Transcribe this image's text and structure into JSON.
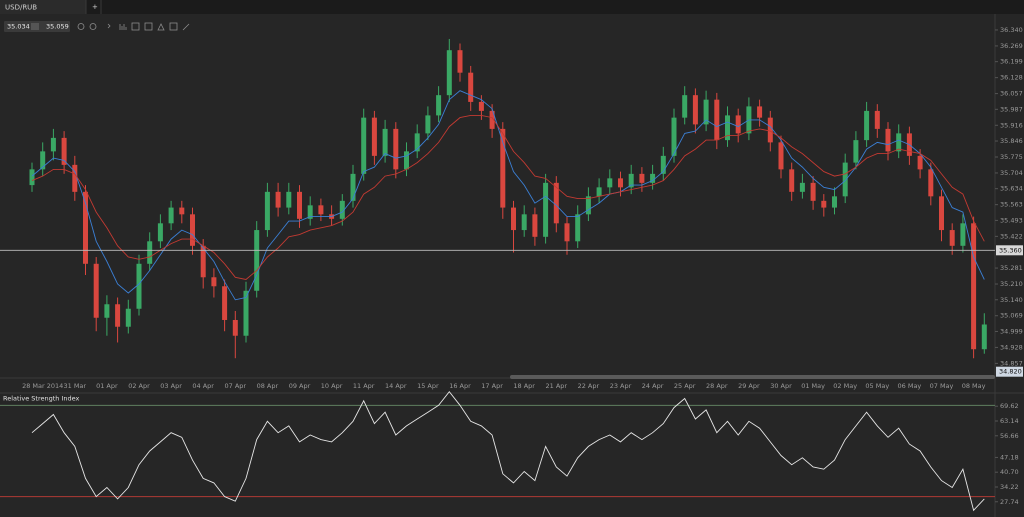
{
  "header": {
    "tab": "USD/RUB",
    "tab_add": "+",
    "bid": 35.034,
    "ask": 35.059
  },
  "chart_data": [
    {
      "type": "candlestick",
      "categories": [
        "28 Mar 2014",
        null,
        null,
        "31 Mar",
        null,
        null,
        "01 Apr",
        null,
        null,
        "02 Apr",
        null,
        null,
        "03 Apr",
        null,
        null,
        "04 Apr",
        null,
        null,
        "07 Apr",
        null,
        null,
        "08 Apr",
        null,
        null,
        "09 Apr",
        null,
        null,
        "10 Apr",
        null,
        null,
        "11 Apr",
        null,
        null,
        "14 Apr",
        null,
        null,
        "15 Apr",
        null,
        null,
        "16 Apr",
        null,
        null,
        "17 Apr",
        null,
        null,
        "18 Apr",
        null,
        null,
        "21 Apr",
        null,
        null,
        "22 Apr",
        null,
        null,
        "23 Apr",
        null,
        null,
        "24 Apr",
        null,
        null,
        "25 Apr",
        null,
        null,
        "28 Apr",
        null,
        null,
        "29 Apr",
        null,
        null,
        "30 Apr",
        null,
        null,
        "01 May",
        null,
        null,
        "02 May",
        null,
        null,
        "05 May",
        null,
        null,
        "06 May",
        null,
        null,
        "07 May",
        null,
        null,
        "08 May",
        null,
        null
      ],
      "open": [
        35.65,
        35.72,
        35.8,
        35.86,
        35.74,
        35.62,
        35.3,
        35.06,
        35.12,
        35.02,
        35.1,
        35.3,
        35.4,
        35.48,
        35.55,
        35.52,
        35.38,
        35.24,
        35.2,
        35.05,
        34.98,
        35.18,
        35.45,
        35.62,
        35.55,
        35.62,
        35.5,
        35.56,
        35.52,
        35.5,
        35.58,
        35.7,
        35.95,
        35.78,
        35.9,
        35.72,
        35.8,
        35.88,
        35.96,
        36.05,
        36.25,
        36.15,
        36.02,
        35.98,
        35.9,
        35.55,
        35.45,
        35.52,
        35.42,
        35.66,
        35.48,
        35.4,
        35.52,
        35.6,
        35.64,
        35.68,
        35.64,
        35.7,
        35.66,
        35.7,
        35.78,
        35.95,
        36.05,
        35.92,
        36.03,
        35.85,
        35.96,
        35.88,
        36.0,
        35.95,
        35.84,
        35.72,
        35.62,
        35.66,
        35.58,
        35.55,
        35.6,
        35.75,
        35.85,
        35.98,
        35.9,
        35.8,
        35.88,
        35.78,
        35.72,
        35.6,
        35.45,
        35.38,
        35.48,
        34.92
      ],
      "high": [
        35.75,
        35.84,
        35.9,
        35.89,
        35.78,
        35.65,
        35.33,
        35.16,
        35.15,
        35.14,
        35.34,
        35.44,
        35.52,
        35.58,
        35.58,
        35.55,
        35.41,
        35.28,
        35.23,
        35.09,
        35.22,
        35.49,
        35.66,
        35.66,
        35.66,
        35.65,
        35.6,
        35.59,
        35.56,
        35.61,
        35.74,
        35.99,
        35.98,
        35.94,
        35.93,
        35.84,
        35.92,
        36.0,
        36.09,
        36.3,
        36.28,
        36.18,
        36.05,
        36.01,
        35.93,
        35.58,
        35.56,
        35.55,
        35.7,
        35.69,
        35.51,
        35.56,
        35.64,
        35.68,
        35.72,
        35.71,
        35.74,
        35.73,
        35.74,
        35.82,
        35.99,
        36.09,
        36.08,
        36.07,
        36.06,
        36.0,
        35.99,
        36.04,
        36.03,
        35.98,
        35.87,
        35.75,
        35.7,
        35.69,
        35.61,
        35.64,
        35.79,
        35.89,
        36.02,
        36.01,
        35.93,
        35.92,
        35.91,
        35.81,
        35.75,
        35.63,
        35.48,
        35.52,
        35.51,
        35.08
      ],
      "low": [
        35.62,
        35.69,
        35.76,
        35.7,
        35.58,
        35.25,
        35.0,
        34.98,
        34.95,
        34.99,
        35.07,
        35.27,
        35.37,
        35.45,
        35.48,
        35.34,
        35.19,
        35.15,
        35.0,
        34.88,
        34.95,
        35.15,
        35.42,
        35.51,
        35.52,
        35.46,
        35.47,
        35.49,
        35.47,
        35.47,
        35.55,
        35.67,
        35.74,
        35.75,
        35.68,
        35.69,
        35.77,
        35.85,
        35.93,
        36.02,
        36.11,
        35.98,
        35.94,
        35.86,
        35.5,
        35.35,
        35.42,
        35.38,
        35.39,
        35.44,
        35.34,
        35.37,
        35.49,
        35.57,
        35.61,
        35.6,
        35.61,
        35.62,
        35.63,
        35.67,
        35.75,
        35.92,
        35.88,
        35.89,
        35.81,
        35.82,
        35.84,
        35.85,
        35.91,
        35.8,
        35.68,
        35.58,
        35.59,
        35.54,
        35.51,
        35.52,
        35.57,
        35.72,
        35.82,
        35.86,
        35.76,
        35.77,
        35.74,
        35.68,
        35.56,
        35.4,
        35.34,
        35.35,
        34.88,
        34.9
      ],
      "close": [
        35.72,
        35.8,
        35.86,
        35.74,
        35.62,
        35.3,
        35.06,
        35.12,
        35.02,
        35.1,
        35.3,
        35.4,
        35.48,
        35.55,
        35.52,
        35.38,
        35.24,
        35.2,
        35.05,
        34.98,
        35.18,
        35.45,
        35.62,
        35.55,
        35.62,
        35.5,
        35.56,
        35.52,
        35.5,
        35.58,
        35.7,
        35.95,
        35.78,
        35.9,
        35.72,
        35.8,
        35.88,
        35.96,
        36.05,
        36.25,
        36.15,
        36.02,
        35.98,
        35.9,
        35.55,
        35.45,
        35.52,
        35.42,
        35.66,
        35.48,
        35.4,
        35.52,
        35.6,
        35.64,
        35.68,
        35.64,
        35.7,
        35.66,
        35.7,
        35.78,
        35.95,
        36.05,
        35.92,
        36.03,
        35.85,
        35.96,
        35.88,
        36.0,
        35.95,
        35.84,
        35.72,
        35.62,
        35.66,
        35.58,
        35.55,
        35.6,
        35.75,
        35.85,
        35.98,
        35.9,
        35.8,
        35.88,
        35.78,
        35.72,
        35.6,
        35.45,
        35.38,
        35.48,
        34.92,
        35.03
      ],
      "up_color": "#3aa865",
      "down_color": "#d9473f",
      "series": [
        {
          "color": "#3b7fd4",
          "values": [
            35.69,
            35.73,
            35.77,
            35.76,
            35.71,
            35.57,
            35.4,
            35.31,
            35.21,
            35.17,
            35.21,
            35.27,
            35.34,
            35.41,
            35.45,
            35.43,
            35.37,
            35.31,
            35.22,
            35.14,
            35.15,
            35.25,
            35.37,
            35.43,
            35.49,
            35.49,
            35.51,
            35.51,
            35.51,
            35.53,
            35.59,
            35.71,
            35.73,
            35.79,
            35.77,
            35.78,
            35.81,
            35.86,
            35.92,
            36.03,
            36.07,
            36.05,
            36.03,
            35.99,
            35.84,
            35.71,
            35.65,
            35.57,
            35.6,
            35.56,
            35.51,
            35.51,
            35.54,
            35.57,
            35.61,
            35.62,
            35.65,
            35.65,
            35.67,
            35.71,
            35.79,
            35.88,
            35.89,
            35.94,
            35.91,
            35.93,
            35.91,
            35.94,
            35.94,
            35.91,
            35.85,
            35.77,
            35.73,
            35.68,
            35.64,
            35.63,
            35.67,
            35.73,
            35.81,
            35.84,
            35.83,
            35.85,
            35.83,
            35.79,
            35.73,
            35.64,
            35.55,
            35.53,
            35.33,
            35.23
          ]
        },
        {
          "color": "#c23a32",
          "values": [
            35.67,
            35.69,
            35.72,
            35.72,
            35.7,
            35.63,
            35.53,
            35.46,
            35.38,
            35.33,
            35.32,
            35.33,
            35.36,
            35.39,
            35.41,
            35.41,
            35.38,
            35.35,
            35.3,
            35.24,
            35.23,
            35.27,
            35.33,
            35.37,
            35.42,
            35.43,
            35.45,
            35.46,
            35.47,
            35.49,
            35.53,
            35.61,
            35.64,
            35.69,
            35.7,
            35.72,
            35.75,
            35.79,
            35.84,
            35.91,
            35.95,
            35.96,
            35.96,
            35.95,
            35.88,
            35.8,
            35.75,
            35.69,
            35.68,
            35.64,
            35.6,
            35.59,
            35.59,
            35.6,
            35.61,
            35.62,
            35.63,
            35.64,
            35.65,
            35.67,
            35.72,
            35.78,
            35.81,
            35.85,
            35.85,
            35.87,
            35.87,
            35.89,
            35.9,
            35.89,
            35.86,
            35.82,
            35.79,
            35.75,
            35.71,
            35.69,
            35.7,
            35.73,
            35.77,
            35.79,
            35.79,
            35.81,
            35.8,
            35.79,
            35.76,
            35.7,
            35.64,
            35.61,
            35.49,
            35.4
          ]
        }
      ],
      "ylim": [
        34.792,
        36.411
      ],
      "yticks": [
        {
          "value": 36.34,
          "label": "36.340"
        },
        36.269,
        36.199,
        36.128,
        36.057,
        35.987,
        35.916,
        35.846,
        35.775,
        35.704,
        35.634,
        35.563,
        35.493,
        35.422,
        35.281,
        {
          "value": 35.21,
          "label": "35.210"
        },
        {
          "value": 35.14,
          "label": "35.140"
        },
        35.069,
        34.999,
        34.928,
        34.857
      ],
      "price_line": {
        "value": 35.36,
        "label": "35.360"
      },
      "low_marker": {
        "value": 34.82,
        "label": "34.820"
      }
    },
    {
      "type": "line",
      "title": "Relative Strength Index",
      "color": "#e6e6e6",
      "values": [
        58,
        62,
        66,
        58,
        52,
        38,
        30,
        34,
        29,
        34,
        44,
        50,
        54,
        58,
        56,
        46,
        38,
        36,
        30,
        28,
        38,
        55,
        63,
        58,
        61,
        54,
        57,
        55,
        54,
        58,
        63,
        72,
        62,
        67,
        57,
        61,
        64,
        67,
        70,
        76,
        70,
        63,
        61,
        57,
        40,
        36,
        41,
        37,
        52,
        43,
        39,
        47,
        52,
        55,
        57,
        54,
        58,
        55,
        58,
        62,
        69,
        73,
        64,
        68,
        58,
        63,
        57,
        63,
        60,
        54,
        48,
        44,
        47,
        43,
        42,
        46,
        55,
        61,
        67,
        61,
        56,
        60,
        53,
        50,
        43,
        37,
        34,
        42,
        24,
        29
      ],
      "ylim": [
        21.07,
        75.41
      ],
      "yticks": [
        69.62,
        63.14,
        56.66,
        47.18,
        {
          "value": 40.7,
          "label": "40.70"
        },
        34.22,
        27.74
      ],
      "levels": [
        30,
        70
      ],
      "level_colors": [
        "#b03a34",
        "#5f7f5f"
      ]
    }
  ]
}
